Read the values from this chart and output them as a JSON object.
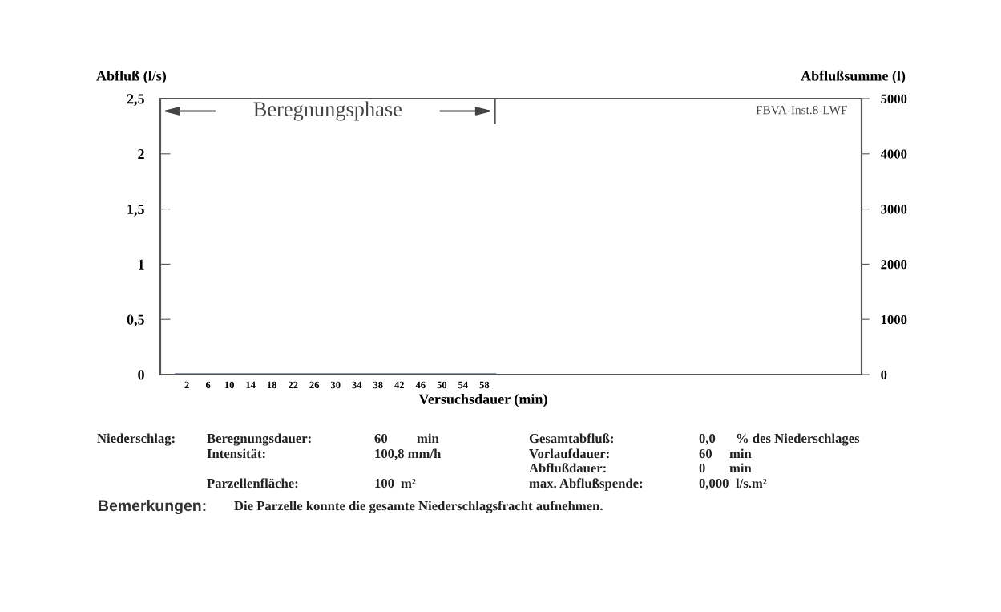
{
  "chart_data": {
    "type": "line",
    "xlabel": "Versuchsdauer (min)",
    "ylabel": "Abfluß (l/s)",
    "y2label": "Abflußsumme (l)",
    "x": [
      0,
      60
    ],
    "series": [
      {
        "color": "#5b7a9a",
        "values": [
          0,
          0
        ]
      }
    ],
    "xlim": [
      -3,
      129
    ],
    "xticks": [
      2,
      6,
      10,
      14,
      18,
      22,
      26,
      30,
      34,
      38,
      42,
      46,
      50,
      54,
      58
    ],
    "ylim": [
      0,
      2.5
    ],
    "yticks": [
      0,
      {
        "value": 0.5,
        "label": "0,5"
      },
      1,
      {
        "value": 1.5,
        "label": "1,5"
      },
      2,
      {
        "value": 2.5,
        "label": "2,5"
      }
    ],
    "y2lim": [
      0,
      5000
    ],
    "y2ticks": [
      0,
      1000,
      2000,
      3000,
      4000,
      5000
    ],
    "grid": false,
    "legend": false,
    "marker": "none",
    "line_style": "solid",
    "ref_lines": [
      {
        "axis": "x",
        "value": 60,
        "label": "Beregnungsphase"
      }
    ],
    "annotations": [
      "FBVA-Inst.8-LWF",
      "Niederschlag:",
      "Beregnungsdauer:",
      "60",
      "min",
      "Gesamtabfluß:",
      "0,0",
      "% des Niederschlages",
      "Intensität:",
      "100,8 mm/h",
      "Vorlaufdauer:",
      "60",
      "min",
      "Abflußdauer:",
      "0",
      "min",
      "Parzellenfläche:",
      "100",
      "m²",
      "max. Abflußspende:",
      "0,000",
      "l/s.m²",
      "Bemerkungen:",
      "Die Parzelle konnte die gesamte Niederschlagsfracht aufnehmen."
    ]
  }
}
